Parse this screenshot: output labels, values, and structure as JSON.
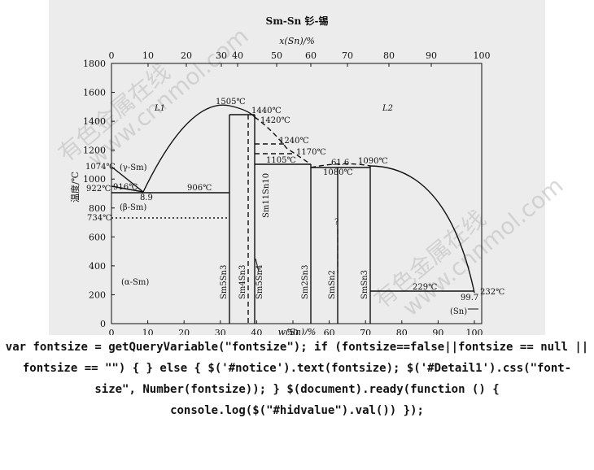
{
  "diagram": {
    "title": "Sm-Sn 钐-锡",
    "top_axis_label": "x(Sn)/%",
    "bottom_axis_label": "w(Sn)/%",
    "y_axis_label": "温度/℃",
    "y_ticks": [
      "0",
      "200",
      "400",
      "600",
      "800",
      "1000",
      "1200",
      "1400",
      "1600",
      "1800"
    ],
    "bottom_ticks": [
      "0",
      "10",
      "20",
      "30",
      "40",
      "50",
      "60",
      "70",
      "80",
      "90",
      "100"
    ],
    "top_ticks": [
      "0",
      "10",
      "20",
      "30",
      "40",
      "50",
      "60",
      "70",
      "80",
      "90",
      "100"
    ],
    "element_left": "Sm",
    "element_right": "Sn",
    "regions": {
      "L1": "L1",
      "L2": "L2",
      "gamma": "(γ-Sm)",
      "beta": "(β-Sm)",
      "alpha": "(α-Sm)",
      "sn": "(Sn)"
    },
    "annotations": {
      "t1505": "1505℃",
      "t1440": "1440℃",
      "t1420": "1420℃",
      "t1240": "1240℃",
      "t1170": "1170℃",
      "t1105": "1105℃",
      "t1080": "1080℃",
      "t1090": "1090℃",
      "c616": "61.6",
      "t1074": "1074℃",
      "t922": "922℃",
      "t916": "916℃",
      "c89": "8.9",
      "t906": "906℃",
      "t734": "734℃",
      "t229": "229℃",
      "c997": "99.7",
      "t232": "232℃",
      "question": "?"
    },
    "phases": {
      "sm5sn3": "Sm5Sn3",
      "sm4sn3": "Sm4Sn3",
      "sm5sn4": "Sm5Sn4",
      "sm11sn10": "Sm11Sn10",
      "sm2sn3": "Sm2Sn3",
      "smsn2": "SmSn2",
      "smsn3": "SmSn3"
    },
    "watermarks": [
      "有色金属在线",
      "www.cnnmol.com"
    ]
  },
  "code_text": "var fontsize = getQueryVariable(\"fontsize\"); if (fontsize==false||fontsize == null || fontsize == \"\") { } else { $('#notice').text(fontsize); $('#Detail1').css(\"font-size\", Number(fontsize)); } $(document).ready(function () { console.log($(\"#hidvalue\").val()) });"
}
